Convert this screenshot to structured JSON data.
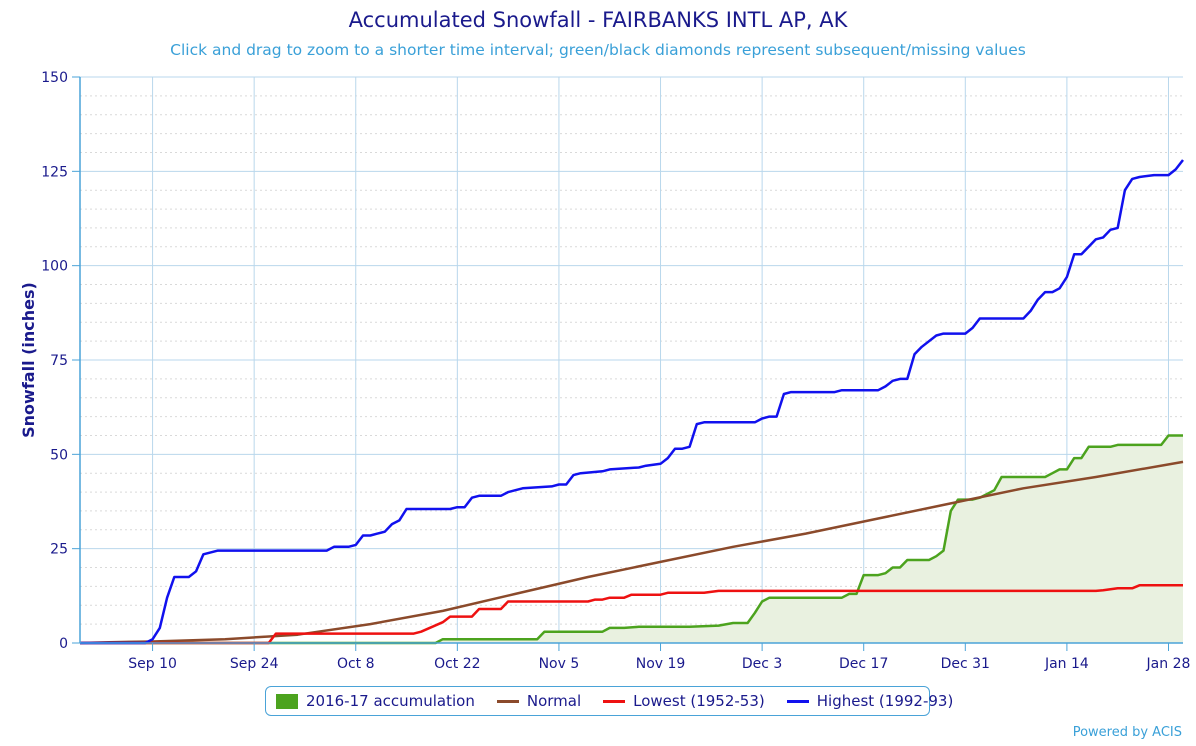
{
  "chart_data": {
    "type": "line",
    "title": "Accumulated Snowfall - FAIRBANKS INTL AP, AK",
    "subtitle": "Click and drag to zoom to a shorter time interval; green/black diamonds represent subsequent/missing values",
    "ylabel": "Snowfall (inches)",
    "xlabel": "",
    "ylim": [
      0,
      150
    ],
    "yticks": [
      0,
      25,
      50,
      75,
      100,
      125,
      150
    ],
    "xticks": [
      "Sep 10",
      "Sep 24",
      "Oct 8",
      "Oct 22",
      "Nov 5",
      "Nov 19",
      "Dec 3",
      "Dec 17",
      "Dec 31",
      "Jan 14",
      "Jan 28"
    ],
    "x_start": "Aug 31",
    "x_range_days": [
      0,
      152
    ],
    "grid": true,
    "legend_position": "bottom-center",
    "series": [
      {
        "name": "2016-17 accumulation",
        "type": "area",
        "color": "#4ca31e",
        "fill": "#e9f1e0",
        "points": [
          [
            0,
            0
          ],
          [
            49,
            0
          ],
          [
            50,
            1
          ],
          [
            63,
            1
          ],
          [
            64,
            3
          ],
          [
            72,
            3
          ],
          [
            73,
            4
          ],
          [
            75,
            4
          ],
          [
            77,
            4.3
          ],
          [
            84,
            4.3
          ],
          [
            88,
            4.6
          ],
          [
            90,
            5.3
          ],
          [
            92,
            5.3
          ],
          [
            93,
            8
          ],
          [
            94,
            11
          ],
          [
            95,
            12
          ],
          [
            103,
            12
          ],
          [
            105,
            12
          ],
          [
            106,
            13
          ],
          [
            107,
            13
          ],
          [
            108,
            18
          ],
          [
            110,
            18
          ],
          [
            111,
            18.5
          ],
          [
            112,
            20
          ],
          [
            113,
            20
          ],
          [
            114,
            22
          ],
          [
            117,
            22
          ],
          [
            118,
            23
          ],
          [
            119,
            24.5
          ],
          [
            120,
            35
          ],
          [
            121,
            38
          ],
          [
            123,
            38
          ],
          [
            124,
            38.5
          ],
          [
            125,
            39.5
          ],
          [
            126,
            40.5
          ],
          [
            127,
            44
          ],
          [
            133,
            44
          ],
          [
            134,
            45
          ],
          [
            135,
            46
          ],
          [
            136,
            46
          ],
          [
            137,
            49
          ],
          [
            138,
            49
          ],
          [
            139,
            52
          ],
          [
            141,
            52
          ],
          [
            142,
            52
          ],
          [
            143,
            52.5
          ],
          [
            149,
            52.5
          ],
          [
            150,
            55
          ],
          [
            152,
            55
          ]
        ]
      },
      {
        "name": "Normal",
        "type": "line",
        "color": "#8b4a2b",
        "points": [
          [
            0,
            0
          ],
          [
            4,
            0.2
          ],
          [
            10,
            0.4
          ],
          [
            20,
            1
          ],
          [
            30,
            2.2
          ],
          [
            40,
            5
          ],
          [
            50,
            8.5
          ],
          [
            60,
            13
          ],
          [
            70,
            17.5
          ],
          [
            80,
            21.5
          ],
          [
            90,
            25.5
          ],
          [
            100,
            29
          ],
          [
            110,
            33
          ],
          [
            120,
            37
          ],
          [
            130,
            41
          ],
          [
            140,
            44
          ],
          [
            152,
            48
          ]
        ]
      },
      {
        "name": "Lowest (1952-53)",
        "type": "line",
        "color": "#ee1111",
        "points": [
          [
            0,
            0
          ],
          [
            26,
            0
          ],
          [
            27,
            2.5
          ],
          [
            30,
            2.5
          ],
          [
            34,
            2.5
          ],
          [
            46,
            2.5
          ],
          [
            47,
            3
          ],
          [
            50,
            5.5
          ],
          [
            51,
            7
          ],
          [
            54,
            7
          ],
          [
            55,
            9
          ],
          [
            58,
            9
          ],
          [
            59,
            11
          ],
          [
            70,
            11
          ],
          [
            71,
            11.5
          ],
          [
            72,
            11.5
          ],
          [
            73,
            12
          ],
          [
            75,
            12
          ],
          [
            76,
            12.8
          ],
          [
            80,
            12.8
          ],
          [
            81,
            13.3
          ],
          [
            86,
            13.3
          ],
          [
            88,
            13.8
          ],
          [
            108,
            13.8
          ],
          [
            109,
            13.8
          ],
          [
            128,
            13.8
          ],
          [
            140,
            13.8
          ],
          [
            141,
            14
          ],
          [
            143,
            14.5
          ],
          [
            145,
            14.5
          ],
          [
            146,
            15.3
          ],
          [
            152,
            15.3
          ]
        ]
      },
      {
        "name": "Highest (1992-93)",
        "type": "line",
        "color": "#1111ee",
        "points": [
          [
            0,
            0
          ],
          [
            9,
            0
          ],
          [
            10,
            1
          ],
          [
            11,
            4
          ],
          [
            12,
            12
          ],
          [
            13,
            17.5
          ],
          [
            15,
            17.5
          ],
          [
            16,
            19
          ],
          [
            17,
            23.5
          ],
          [
            19,
            24.5
          ],
          [
            23,
            24.5
          ],
          [
            34,
            24.5
          ],
          [
            35,
            25.5
          ],
          [
            37,
            25.5
          ],
          [
            38,
            26
          ],
          [
            39,
            28.5
          ],
          [
            40,
            28.5
          ],
          [
            41,
            29
          ],
          [
            42,
            29.5
          ],
          [
            43,
            31.5
          ],
          [
            44,
            32.5
          ],
          [
            45,
            35.5
          ],
          [
            51,
            35.5
          ],
          [
            52,
            36
          ],
          [
            53,
            36
          ],
          [
            54,
            38.5
          ],
          [
            55,
            39
          ],
          [
            58,
            39
          ],
          [
            59,
            40
          ],
          [
            60,
            40.5
          ],
          [
            61,
            41
          ],
          [
            65,
            41.5
          ],
          [
            66,
            42
          ],
          [
            67,
            42
          ],
          [
            68,
            44.5
          ],
          [
            69,
            45
          ],
          [
            72,
            45.5
          ],
          [
            73,
            46
          ],
          [
            77,
            46.5
          ],
          [
            78,
            47
          ],
          [
            80,
            47.5
          ],
          [
            81,
            49
          ],
          [
            82,
            51.5
          ],
          [
            83,
            51.5
          ],
          [
            84,
            52
          ],
          [
            85,
            58
          ],
          [
            86,
            58.5
          ],
          [
            93,
            58.5
          ],
          [
            94,
            59.5
          ],
          [
            95,
            60
          ],
          [
            96,
            60
          ],
          [
            97,
            66
          ],
          [
            98,
            66.5
          ],
          [
            104,
            66.5
          ],
          [
            105,
            67
          ],
          [
            106,
            67
          ],
          [
            110,
            67
          ],
          [
            111,
            68
          ],
          [
            112,
            69.5
          ],
          [
            113,
            70
          ],
          [
            114,
            70
          ],
          [
            115,
            76.5
          ],
          [
            116,
            78.5
          ],
          [
            118,
            81.5
          ],
          [
            119,
            82
          ],
          [
            122,
            82
          ],
          [
            123,
            83.5
          ],
          [
            124,
            86
          ],
          [
            130,
            86
          ],
          [
            131,
            88
          ],
          [
            132,
            91
          ],
          [
            133,
            93
          ],
          [
            134,
            93
          ],
          [
            135,
            94
          ],
          [
            136,
            97
          ],
          [
            137,
            103
          ],
          [
            138,
            103
          ],
          [
            140,
            107
          ],
          [
            141,
            107.5
          ],
          [
            142,
            109.5
          ],
          [
            143,
            110
          ],
          [
            144,
            120
          ],
          [
            145,
            123
          ],
          [
            146,
            123.5
          ],
          [
            148,
            124
          ],
          [
            149,
            124
          ],
          [
            150,
            124
          ],
          [
            151,
            125.5
          ],
          [
            152,
            128
          ]
        ]
      }
    ]
  },
  "legend": [
    {
      "label": "2016-17 accumulation",
      "kind": "box",
      "color": "#4ca31e"
    },
    {
      "label": "Normal",
      "kind": "line",
      "color": "#8b4a2b"
    },
    {
      "label": "Lowest (1952-53)",
      "kind": "line",
      "color": "#ee1111"
    },
    {
      "label": "Highest (1992-93)",
      "kind": "line",
      "color": "#1111ee"
    }
  ],
  "credit": "Powered by ACIS"
}
